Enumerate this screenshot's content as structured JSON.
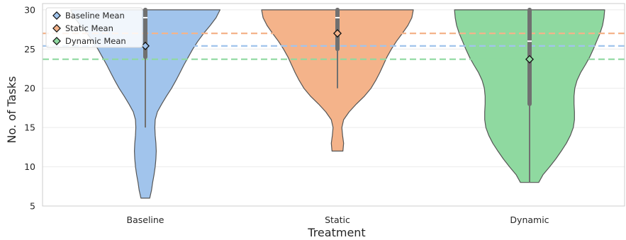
{
  "chart_data": {
    "type": "violin",
    "xlabel": "Treatment",
    "ylabel": "No. of Tasks",
    "ylim": [
      5,
      30.8
    ],
    "yticks": [
      5,
      10,
      15,
      20,
      25,
      30
    ],
    "grid": true,
    "legend_position": "top-left",
    "categories": [
      "Baseline",
      "Static",
      "Dynamic"
    ],
    "violins": [
      {
        "category": "Baseline",
        "color": "#a1c4ec",
        "min": 6,
        "max": 30,
        "q1": 24,
        "median": 29,
        "q3": 30,
        "whisker_low": 15,
        "whisker_high": 30,
        "mean": 25.4,
        "density": [
          [
            6,
            0.12
          ],
          [
            7,
            0.17
          ],
          [
            8,
            0.2
          ],
          [
            9,
            0.24
          ],
          [
            10,
            0.27
          ],
          [
            11,
            0.29
          ],
          [
            12,
            0.3
          ],
          [
            13,
            0.29
          ],
          [
            14,
            0.27
          ],
          [
            15,
            0.26
          ],
          [
            16,
            0.27
          ],
          [
            17,
            0.33
          ],
          [
            18,
            0.45
          ],
          [
            19,
            0.58
          ],
          [
            20,
            0.72
          ],
          [
            21,
            0.84
          ],
          [
            22,
            0.95
          ],
          [
            23,
            1.06
          ],
          [
            24,
            1.18
          ],
          [
            25,
            1.3
          ],
          [
            26,
            1.44
          ],
          [
            27,
            1.6
          ],
          [
            28,
            1.78
          ],
          [
            29,
            1.94
          ],
          [
            30,
            2.05
          ]
        ]
      },
      {
        "category": "Static",
        "color": "#f4b38a",
        "min": 12,
        "max": 30,
        "q1": 25,
        "median": 29,
        "q3": 30,
        "whisker_low": 20,
        "whisker_high": 30,
        "mean": 27.0,
        "density": [
          [
            12,
            0.15
          ],
          [
            13,
            0.17
          ],
          [
            14,
            0.14
          ],
          [
            15,
            0.12
          ],
          [
            16,
            0.17
          ],
          [
            17,
            0.32
          ],
          [
            18,
            0.52
          ],
          [
            19,
            0.74
          ],
          [
            20,
            0.92
          ],
          [
            21,
            1.05
          ],
          [
            22,
            1.16
          ],
          [
            23,
            1.26
          ],
          [
            24,
            1.36
          ],
          [
            25,
            1.48
          ],
          [
            26,
            1.62
          ],
          [
            27,
            1.78
          ],
          [
            28,
            1.93
          ],
          [
            29,
            2.04
          ],
          [
            30,
            2.08
          ]
        ]
      },
      {
        "category": "Dynamic",
        "color": "#8fd9a0",
        "min": 8,
        "max": 30,
        "q1": 18,
        "median": 26,
        "q3": 30,
        "whisker_low": 8,
        "whisker_high": 30,
        "mean": 23.7,
        "density": [
          [
            8,
            0.25
          ],
          [
            9,
            0.37
          ],
          [
            10,
            0.55
          ],
          [
            11,
            0.72
          ],
          [
            12,
            0.87
          ],
          [
            13,
            1.01
          ],
          [
            14,
            1.12
          ],
          [
            15,
            1.2
          ],
          [
            16,
            1.23
          ],
          [
            17,
            1.23
          ],
          [
            18,
            1.22
          ],
          [
            19,
            1.22
          ],
          [
            20,
            1.24
          ],
          [
            21,
            1.3
          ],
          [
            22,
            1.4
          ],
          [
            23,
            1.53
          ],
          [
            24,
            1.65
          ],
          [
            25,
            1.75
          ],
          [
            26,
            1.84
          ],
          [
            27,
            1.93
          ],
          [
            28,
            2.0
          ],
          [
            29,
            2.04
          ],
          [
            30,
            2.06
          ]
        ]
      }
    ],
    "mean_lines": [
      {
        "name": "Baseline Mean",
        "value": 25.4,
        "color": "#a1c4ec"
      },
      {
        "name": "Static Mean",
        "value": 27.0,
        "color": "#f4b38a"
      },
      {
        "name": "Dynamic Mean",
        "value": 23.7,
        "color": "#8fd9a0"
      }
    ]
  }
}
